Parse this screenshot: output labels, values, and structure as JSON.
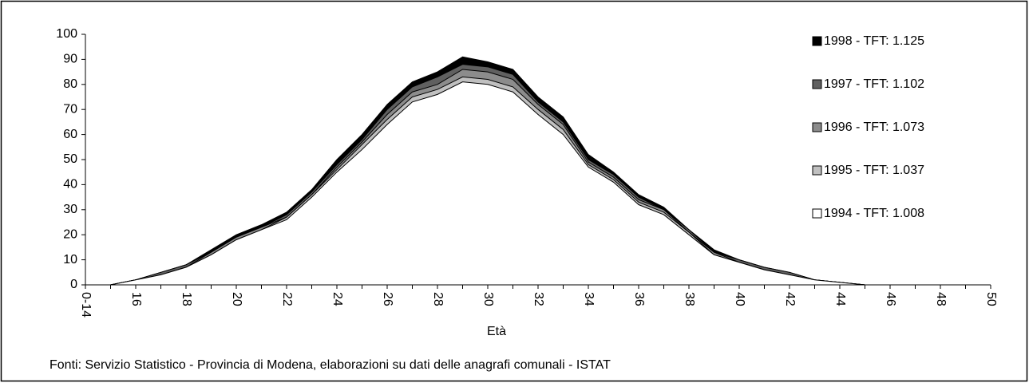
{
  "chart_data": {
    "type": "area",
    "x_label": "Età",
    "footnote": "Fonti: Servizio Statistico - Provincia di Modena, elaborazioni su dati delle anagrafi comunali - ISTAT",
    "categories": [
      "0-14",
      null,
      "16",
      null,
      "18",
      null,
      "20",
      null,
      "22",
      null,
      "24",
      null,
      "26",
      null,
      "28",
      null,
      "30",
      null,
      "32",
      null,
      "34",
      null,
      "36",
      null,
      "38",
      null,
      "40",
      null,
      "42",
      null,
      "44",
      null,
      "46",
      null,
      "48",
      null,
      "50"
    ],
    "series": [
      {
        "name": "1998 - TFT: 1.125",
        "color": "#000000",
        "values": [
          0,
          0,
          2,
          5,
          8,
          14,
          20,
          24,
          29,
          38,
          50,
          60,
          72,
          81,
          85,
          91,
          89,
          86,
          75,
          67,
          52,
          45,
          36,
          31,
          22,
          14,
          10,
          7,
          5,
          2,
          1,
          0,
          0,
          0,
          0,
          0,
          0
        ]
      },
      {
        "name": "1997 - TFT: 1.102",
        "color": "#606060",
        "values": [
          0,
          0,
          2,
          5,
          8,
          13,
          19,
          23,
          28,
          37,
          48,
          58,
          70,
          79,
          83,
          88,
          87,
          84,
          73,
          65,
          50,
          44,
          35,
          30,
          22,
          13,
          10,
          7,
          5,
          2,
          1,
          0,
          0,
          0,
          0,
          0,
          0
        ]
      },
      {
        "name": "1996 - TFT: 1.073",
        "color": "#8c8c8c",
        "values": [
          0,
          0,
          2,
          4,
          7,
          13,
          19,
          23,
          27,
          36,
          47,
          57,
          68,
          77,
          80,
          86,
          85,
          82,
          72,
          64,
          49,
          43,
          34,
          30,
          21,
          13,
          9,
          6,
          4,
          2,
          1,
          0,
          0,
          0,
          0,
          0,
          0
        ]
      },
      {
        "name": "1995 - TFT: 1.037",
        "color": "#c0c0c0",
        "values": [
          0,
          0,
          2,
          4,
          7,
          12,
          18,
          22,
          27,
          36,
          46,
          56,
          66,
          75,
          78,
          83,
          82,
          79,
          70,
          62,
          48,
          42,
          33,
          29,
          21,
          12,
          9,
          6,
          4,
          2,
          1,
          0,
          0,
          0,
          0,
          0,
          0
        ]
      },
      {
        "name": "1994 - TFT: 1.008",
        "color": "#ffffff",
        "values": [
          0,
          0,
          2,
          4,
          7,
          12,
          18,
          22,
          26,
          35,
          45,
          54,
          64,
          73,
          76,
          81,
          80,
          77,
          68,
          60,
          47,
          41,
          32,
          28,
          20,
          12,
          9,
          6,
          4,
          2,
          1,
          0,
          0,
          0,
          0,
          0,
          0
        ]
      }
    ],
    "ylim": [
      0,
      100
    ],
    "yticks": [
      0,
      10,
      20,
      30,
      40,
      50,
      60,
      70,
      80,
      90,
      100
    ],
    "legend": "upper right"
  }
}
